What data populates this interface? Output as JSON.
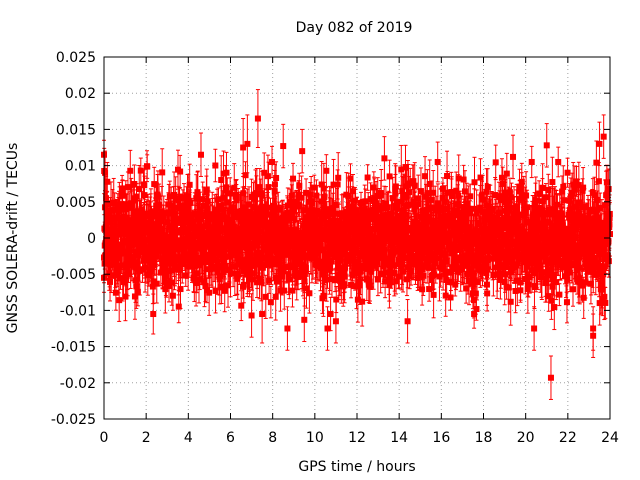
{
  "chart_data": {
    "type": "scatter",
    "title": "Day 082 of 2019",
    "xlabel": "GPS time / hours",
    "ylabel": "GNSS SOLERA-drift / TECUs",
    "xlim": [
      0,
      24
    ],
    "ylim": [
      -0.025,
      0.025
    ],
    "x_ticks": [
      0,
      2,
      4,
      6,
      8,
      10,
      12,
      14,
      16,
      18,
      20,
      22,
      24
    ],
    "x_tick_labels": [
      "0",
      "2",
      "4",
      "6",
      "8",
      "10",
      "12",
      "14",
      "16",
      "18",
      "20",
      "22",
      "24"
    ],
    "y_ticks": [
      0.025,
      0.02,
      0.015,
      0.01,
      0.005,
      0,
      -0.005,
      -0.01,
      -0.015,
      -0.02,
      -0.025
    ],
    "y_tick_labels": [
      "0.025",
      "0.02",
      "0.015",
      "0.01",
      "0.005",
      "0",
      "-0.005",
      "-0.01",
      "-0.015",
      "-0.02",
      "-0.025"
    ],
    "grid": true,
    "marker": "square",
    "error_bars": true,
    "series_color": "#ff0000",
    "grid_color": "#a0a0a0",
    "noise_level": {
      "spread_sigma": 0.0035,
      "typical_error": 0.0025,
      "typical_range": [
        -0.01,
        0.01
      ]
    },
    "points": [
      {
        "x": 0.0,
        "y": 0.0115,
        "err": 0.002
      },
      {
        "x": 0.05,
        "y": 0.009,
        "err": 0.003
      },
      {
        "x": 0.1,
        "y": 0.0055,
        "err": 0.003
      },
      {
        "x": 0.0,
        "y": -0.0055,
        "err": 0.002
      },
      {
        "x": 4.6,
        "y": 0.0115,
        "err": 0.003
      },
      {
        "x": 6.6,
        "y": 0.0125,
        "err": 0.004
      },
      {
        "x": 6.8,
        "y": 0.013,
        "err": 0.004
      },
      {
        "x": 7.3,
        "y": 0.0165,
        "err": 0.004
      },
      {
        "x": 8.5,
        "y": 0.0127,
        "err": 0.003
      },
      {
        "x": 9.4,
        "y": 0.012,
        "err": 0.003
      },
      {
        "x": 7.0,
        "y": -0.0107,
        "err": 0.003
      },
      {
        "x": 7.5,
        "y": -0.0105,
        "err": 0.004
      },
      {
        "x": 8.7,
        "y": -0.0125,
        "err": 0.003
      },
      {
        "x": 9.5,
        "y": -0.0113,
        "err": 0.003
      },
      {
        "x": 10.6,
        "y": -0.0125,
        "err": 0.003
      },
      {
        "x": 11.0,
        "y": -0.0115,
        "err": 0.003
      },
      {
        "x": 13.3,
        "y": 0.011,
        "err": 0.003
      },
      {
        "x": 14.3,
        "y": 0.0098,
        "err": 0.003
      },
      {
        "x": 14.4,
        "y": -0.0115,
        "err": 0.003
      },
      {
        "x": 19.4,
        "y": 0.0112,
        "err": 0.003
      },
      {
        "x": 20.4,
        "y": -0.0125,
        "err": 0.003
      },
      {
        "x": 21.0,
        "y": 0.0128,
        "err": 0.003
      },
      {
        "x": 21.2,
        "y": -0.0193,
        "err": 0.003
      },
      {
        "x": 23.2,
        "y": -0.0125,
        "err": 0.003
      },
      {
        "x": 23.2,
        "y": -0.0135,
        "err": 0.003
      },
      {
        "x": 23.5,
        "y": 0.013,
        "err": 0.003
      },
      {
        "x": 23.7,
        "y": 0.014,
        "err": 0.003
      }
    ]
  }
}
